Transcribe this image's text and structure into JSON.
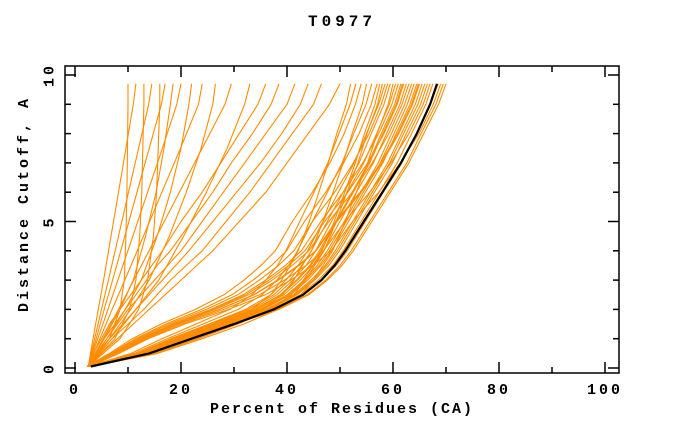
{
  "chart_data": {
    "type": "line",
    "title": "T0977",
    "xlabel": "Percent of Residues (CA)",
    "ylabel": "Distance Cutoff, A",
    "xlim": [
      0,
      100
    ],
    "ylim": [
      0,
      10
    ],
    "grid": "off",
    "legend": "none",
    "colors": {
      "model": "#FF8C00",
      "reference": "#000000",
      "axis": "#000000",
      "background": "#FFFFFF"
    },
    "x_axis": {
      "major": [
        0,
        20,
        40,
        60,
        80,
        100
      ],
      "minor": [
        10,
        30,
        50,
        70,
        90
      ]
    },
    "y_axis": {
      "major": [
        0,
        5,
        10
      ],
      "minor": [
        1,
        2,
        3,
        4,
        6,
        7,
        8,
        9
      ]
    },
    "grids": {
      "a": [
        0.05,
        0.5,
        1,
        1.5,
        2,
        2.5,
        3,
        3.5,
        4,
        5,
        6,
        7,
        8,
        9,
        9.7
      ],
      "b": [
        0.05,
        1,
        2,
        3,
        4.5,
        6,
        7.5,
        9,
        9.7
      ]
    },
    "series": [
      {
        "name": "model-01",
        "role": "model",
        "grid": "b",
        "percents": [
          2.5,
          6.5,
          8.5,
          9.3,
          9.6,
          9.8,
          9.9,
          10,
          10
        ]
      },
      {
        "name": "model-02",
        "role": "model",
        "grid": "b",
        "percents": [
          2.5,
          3.4,
          4.4,
          5.4,
          6.8,
          8.2,
          9.6,
          11,
          11.5
        ]
      },
      {
        "name": "model-03",
        "role": "model",
        "grid": "b",
        "percents": [
          2.5,
          7.5,
          10.3,
          11.5,
          12.2,
          12.6,
          12.8,
          13,
          13
        ]
      },
      {
        "name": "model-04",
        "role": "model",
        "grid": "b",
        "percents": [
          2.5,
          3.7,
          5,
          6.3,
          8.2,
          10.1,
          12,
          13.9,
          14.5
        ]
      },
      {
        "name": "model-05",
        "role": "model",
        "grid": "b",
        "percents": [
          2.5,
          8.5,
          12,
          13.7,
          14.8,
          15.4,
          15.7,
          16,
          16
        ]
      },
      {
        "name": "model-06",
        "role": "model",
        "grid": "b",
        "percents": [
          2.5,
          4,
          5.5,
          7.1,
          9.4,
          11.7,
          14,
          16.3,
          17
        ]
      },
      {
        "name": "model-07",
        "role": "model",
        "grid": "b",
        "percents": [
          2.5,
          5.5,
          8.5,
          11,
          13.3,
          15.3,
          16.8,
          18,
          18.5
        ]
      },
      {
        "name": "model-08",
        "role": "model",
        "grid": "b",
        "percents": [
          2.5,
          4.3,
          6.2,
          8.1,
          10.9,
          13.7,
          16.5,
          19.2,
          20
        ]
      },
      {
        "name": "model-09",
        "role": "model",
        "grid": "b",
        "percents": [
          2.5,
          6,
          9.5,
          12.5,
          15.5,
          18,
          20,
          21.5,
          22
        ]
      },
      {
        "name": "model-10",
        "role": "model",
        "grid": "b",
        "percents": [
          2.5,
          4.7,
          7,
          9.4,
          12.9,
          16.4,
          19.9,
          23.3,
          24
        ]
      },
      {
        "name": "model-11",
        "role": "model",
        "grid": "b",
        "percents": [
          2.5,
          6.5,
          10.5,
          14,
          17.8,
          21,
          23.8,
          26,
          26.5
        ]
      },
      {
        "name": "model-12",
        "role": "model",
        "grid": "b",
        "percents": [
          2.5,
          5.3,
          8.2,
          11.1,
          15.4,
          19.7,
          24,
          28.3,
          29.5
        ]
      },
      {
        "name": "model-13",
        "role": "model",
        "grid": "b",
        "percents": [
          2.5,
          7,
          11.5,
          15.8,
          20.5,
          24.8,
          28.7,
          32,
          33
        ]
      },
      {
        "name": "model-14",
        "role": "model",
        "grid": "a",
        "percents": [
          2.5,
          5,
          8,
          11,
          14,
          17,
          20,
          23,
          26,
          31,
          36,
          40,
          44,
          48,
          50
        ]
      },
      {
        "name": "model-15",
        "role": "model",
        "grid": "a",
        "percents": [
          2.5,
          4.5,
          7,
          10,
          13,
          15.5,
          18,
          21,
          24,
          28.5,
          33,
          37,
          41,
          45,
          46.5
        ]
      },
      {
        "name": "model-16",
        "role": "model",
        "grid": "a",
        "percents": [
          2.5,
          4,
          6.5,
          9,
          11.5,
          14,
          16.5,
          19,
          21.5,
          26,
          30.5,
          35,
          39,
          42.5,
          44
        ]
      },
      {
        "name": "model-17",
        "role": "model",
        "grid": "a",
        "percents": [
          2.5,
          4,
          6,
          8,
          10,
          12.5,
          15,
          17.5,
          20,
          24,
          28,
          32,
          36,
          40,
          41.5
        ]
      },
      {
        "name": "model-18",
        "role": "model",
        "grid": "a",
        "percents": [
          2.5,
          3.8,
          5.5,
          7.5,
          9.5,
          11.5,
          13.5,
          15.5,
          18,
          22,
          26,
          29.5,
          33.5,
          37,
          38.5
        ]
      },
      {
        "name": "model-19",
        "role": "model",
        "grid": "a",
        "percents": [
          2.5,
          3.5,
          5,
          6.5,
          8.5,
          10.5,
          12.5,
          14.5,
          16.5,
          20,
          24,
          27.5,
          31,
          34.5,
          36
        ]
      },
      {
        "name": "model-20",
        "role": "model",
        "grid": "a",
        "percents": [
          2.8,
          14.3,
          22,
          29.2,
          35.2,
          39.1,
          41.3,
          42.9,
          44.6,
          46.8,
          48.7,
          50.6,
          52.3,
          54.2,
          55
        ]
      },
      {
        "name": "model-21",
        "role": "model",
        "grid": "a",
        "percents": [
          2.5,
          11.2,
          17.4,
          24.1,
          30.8,
          35.3,
          38.1,
          40.3,
          42,
          44.8,
          47.6,
          50.4,
          52.6,
          54.9,
          56
        ]
      },
      {
        "name": "model-22",
        "role": "model",
        "grid": "a",
        "percents": [
          2.3,
          6.8,
          11.4,
          17.1,
          23.9,
          29.6,
          33.6,
          37.1,
          39.9,
          43.3,
          47.3,
          50.7,
          53.6,
          55.9,
          57
        ]
      },
      {
        "name": "model-23",
        "role": "model",
        "grid": "a",
        "percents": [
          2.9,
          15.1,
          23.2,
          30.7,
          37.1,
          41.2,
          43.5,
          45.2,
          47,
          49.3,
          51.3,
          53.4,
          55.1,
          57.1,
          58
        ]
      },
      {
        "name": "model-24",
        "role": "model",
        "grid": "a",
        "percents": [
          2.6,
          11.7,
          18.1,
          25.2,
          32.2,
          36.9,
          39.8,
          42.1,
          43.9,
          46.8,
          49.7,
          52.7,
          55,
          57.3,
          58.5
        ]
      },
      {
        "name": "model-25",
        "role": "model",
        "grid": "a",
        "percents": [
          2.4,
          7.1,
          11.8,
          17.7,
          24.8,
          30.7,
          34.8,
          38.4,
          41.3,
          44.8,
          49,
          52.5,
          55.5,
          57.8,
          59
        ]
      },
      {
        "name": "model-26",
        "role": "model",
        "grid": "a",
        "percents": [
          2.7,
          11.9,
          18.4,
          25.6,
          32.7,
          37.5,
          40.5,
          42.8,
          44.6,
          47.6,
          50.6,
          53.6,
          55.9,
          58.3,
          59.5
        ]
      },
      {
        "name": "model-27",
        "role": "model",
        "grid": "a",
        "percents": [
          3,
          15.6,
          24,
          31.8,
          38.4,
          42.6,
          45,
          46.8,
          48.6,
          51,
          53.1,
          55.2,
          57,
          59.1,
          60
        ]
      },
      {
        "name": "model-28",
        "role": "model",
        "grid": "a",
        "percents": [
          2.7,
          12.1,
          18.8,
          26,
          33.3,
          38.1,
          41.1,
          43.6,
          45.4,
          48.4,
          51.4,
          54.5,
          56.9,
          59.3,
          60.5
        ]
      },
      {
        "name": "model-29",
        "role": "model",
        "grid": "a",
        "percents": [
          2.4,
          7.3,
          12.2,
          18.3,
          25.6,
          31.7,
          36,
          39.7,
          42.7,
          46.4,
          50.6,
          54.3,
          57.3,
          59.8,
          61
        ]
      },
      {
        "name": "model-30",
        "role": "model",
        "grid": "a",
        "percents": [
          2.8,
          12.3,
          19.1,
          26.4,
          33.8,
          38.7,
          41.8,
          44.3,
          46.1,
          49.2,
          52.3,
          55.4,
          57.8,
          60.3,
          61.5
        ]
      },
      {
        "name": "model-31",
        "role": "model",
        "grid": "a",
        "percents": [
          2.5,
          7.4,
          12.4,
          18.6,
          26,
          32.2,
          36.6,
          40.3,
          43.4,
          47.1,
          51.5,
          55.2,
          58.3,
          60.8,
          62
        ]
      },
      {
        "name": "model-32",
        "role": "model",
        "grid": "a",
        "percents": [
          2.8,
          12.5,
          19.4,
          26.9,
          34.4,
          39.4,
          42.5,
          45,
          46.9,
          50,
          53.1,
          56.3,
          58.8,
          61.3,
          62.5
        ]
      },
      {
        "name": "model-33",
        "role": "model",
        "grid": "a",
        "percents": [
          2.5,
          7.6,
          12.6,
          18.9,
          26.5,
          32.8,
          37.2,
          41,
          44.1,
          47.9,
          52.3,
          56.1,
          59.2,
          61.7,
          63
        ]
      },
      {
        "name": "model-34",
        "role": "model",
        "grid": "a",
        "percents": [
          2.9,
          12.7,
          19.7,
          27.3,
          34.9,
          40,
          43.2,
          45.7,
          47.6,
          50.8,
          54,
          57.2,
          59.7,
          62.2,
          63.5
        ]
      },
      {
        "name": "model-35",
        "role": "model",
        "grid": "a",
        "percents": [
          2.9,
          12.8,
          19.8,
          27.5,
          35.2,
          40.3,
          43.5,
          46.1,
          48,
          51.2,
          54.4,
          57.6,
          60.2,
          62.7,
          64
        ]
      },
      {
        "name": "model-36",
        "role": "model",
        "grid": "a",
        "percents": [
          2.9,
          12.9,
          20,
          27.7,
          35.5,
          40.6,
          43.9,
          46.4,
          48.4,
          51.6,
          54.8,
          58.1,
          60.6,
          63.2,
          64.5
        ]
      },
      {
        "name": "model-37",
        "role": "model",
        "grid": "a",
        "percents": [
          2.6,
          7.8,
          13,
          19.5,
          27.3,
          33.8,
          38.4,
          42.3,
          45.5,
          49.4,
          54,
          57.9,
          61.1,
          63.7,
          65
        ]
      },
      {
        "name": "model-38",
        "role": "model",
        "grid": "a",
        "percents": [
          2.9,
          13.1,
          20.3,
          28.2,
          36,
          41.3,
          44.5,
          47.2,
          49.1,
          52.4,
          55.7,
          59,
          61.6,
          64.2,
          65.5
        ]
      },
      {
        "name": "model-39",
        "role": "model",
        "grid": "a",
        "percents": [
          3,
          13.2,
          20.5,
          28.4,
          36.3,
          41.6,
          44.9,
          47.5,
          49.5,
          52.8,
          56.1,
          59.4,
          62,
          64.7,
          66
        ]
      },
      {
        "name": "model-40",
        "role": "model",
        "grid": "a",
        "percents": [
          3,
          13.3,
          20.6,
          28.6,
          36.6,
          41.9,
          45.2,
          47.9,
          49.9,
          53.2,
          56.5,
          59.9,
          62.5,
          65.2,
          66.5
        ]
      },
      {
        "name": "model-41",
        "role": "model",
        "grid": "a",
        "percents": [
          2.7,
          8,
          13.4,
          20.1,
          28.1,
          34.8,
          39.5,
          43.6,
          46.9,
          50.9,
          55.6,
          59.6,
          63,
          65.7,
          67
        ]
      },
      {
        "name": "model-42",
        "role": "model",
        "grid": "a",
        "percents": [
          3,
          13.5,
          20.9,
          29,
          37.1,
          42.5,
          45.9,
          48.6,
          50.6,
          54,
          57.4,
          60.8,
          63.5,
          66.2,
          67.5
        ]
      },
      {
        "name": "model-43",
        "role": "model",
        "grid": "a",
        "percents": [
          3.1,
          13.7,
          21.2,
          29.5,
          37.7,
          43.2,
          46.6,
          49.3,
          51.4,
          54.8,
          58.2,
          61.7,
          64.4,
          67.1,
          68.5
        ]
      },
      {
        "name": "model-44",
        "role": "model",
        "grid": "a",
        "percents": [
          2.8,
          8.3,
          13.8,
          20.7,
          29,
          35.9,
          40.7,
          44.9,
          48.3,
          52.4,
          57.3,
          61.4,
          64.9,
          67.6,
          69
        ]
      },
      {
        "name": "model-45",
        "role": "model",
        "grid": "a",
        "percents": [
          3.2,
          14,
          21.7,
          30.1,
          38.5,
          44.1,
          47.6,
          50.4,
          52.5,
          56,
          59.5,
          63,
          65.8,
          68.6,
          70
        ]
      },
      {
        "name": "model-46",
        "role": "model",
        "grid": "a",
        "percents": [
          2.6,
          13.5,
          20.8,
          27.6,
          33.3,
          36.9,
          39,
          40.6,
          42.1,
          44.2,
          46,
          47.8,
          49.4,
          51.2,
          52
        ]
      },
      {
        "name": "model-47",
        "role": "model",
        "grid": "a",
        "percents": [
          2.4,
          10.6,
          16.4,
          22.8,
          29.2,
          33.4,
          36,
          38.2,
          39.8,
          42.4,
          45.1,
          47.7,
          49.8,
          51.9,
          53
        ]
      },
      {
        "name": "model-48",
        "role": "model",
        "grid": "a",
        "percents": [
          2.2,
          6.5,
          10.8,
          16.2,
          22.7,
          28.1,
          31.9,
          35.1,
          37.8,
          41,
          44.8,
          48.1,
          50.8,
          52.9,
          54
        ]
      },
      {
        "name": "model-49",
        "role": "model",
        "grid": "a",
        "percents": [
          2.9,
          15,
          23,
          30.5,
          36.8,
          40.8,
          43.1,
          44.9,
          46.6,
          48.9,
          50.9,
          52.9,
          54.6,
          56.6,
          57.5
        ]
      },
      {
        "name": "model-50",
        "role": "model",
        "grid": "a",
        "percents": [
          2.8,
          12.4,
          19.2,
          26.6,
          34,
          38.9,
          42,
          44.5,
          46.4,
          49.4,
          52.5,
          55.6,
          58.1,
          60.6,
          61.8
        ]
      },
      {
        "name": "model-51",
        "role": "model",
        "grid": "a",
        "percents": [
          2.6,
          7.8,
          13,
          19.4,
          27.2,
          33.7,
          38.2,
          42.1,
          45.4,
          49.2,
          53.8,
          57.7,
          60.9,
          63.5,
          64.8
        ]
      },
      {
        "name": "model-52",
        "role": "model",
        "grid": "a",
        "percents": [
          3.1,
          13.9,
          21.5,
          29.9,
          38.2,
          43.8,
          47.3,
          50,
          52.1,
          55.6,
          59.1,
          62.6,
          65.3,
          68.1,
          69.5
        ]
      },
      {
        "name": "reference",
        "role": "reference",
        "grid": "a",
        "percents": [
          3,
          14,
          22,
          30,
          37.5,
          43,
          46.5,
          49,
          51,
          54.5,
          58,
          61.5,
          64.5,
          67,
          68.3
        ]
      }
    ]
  }
}
